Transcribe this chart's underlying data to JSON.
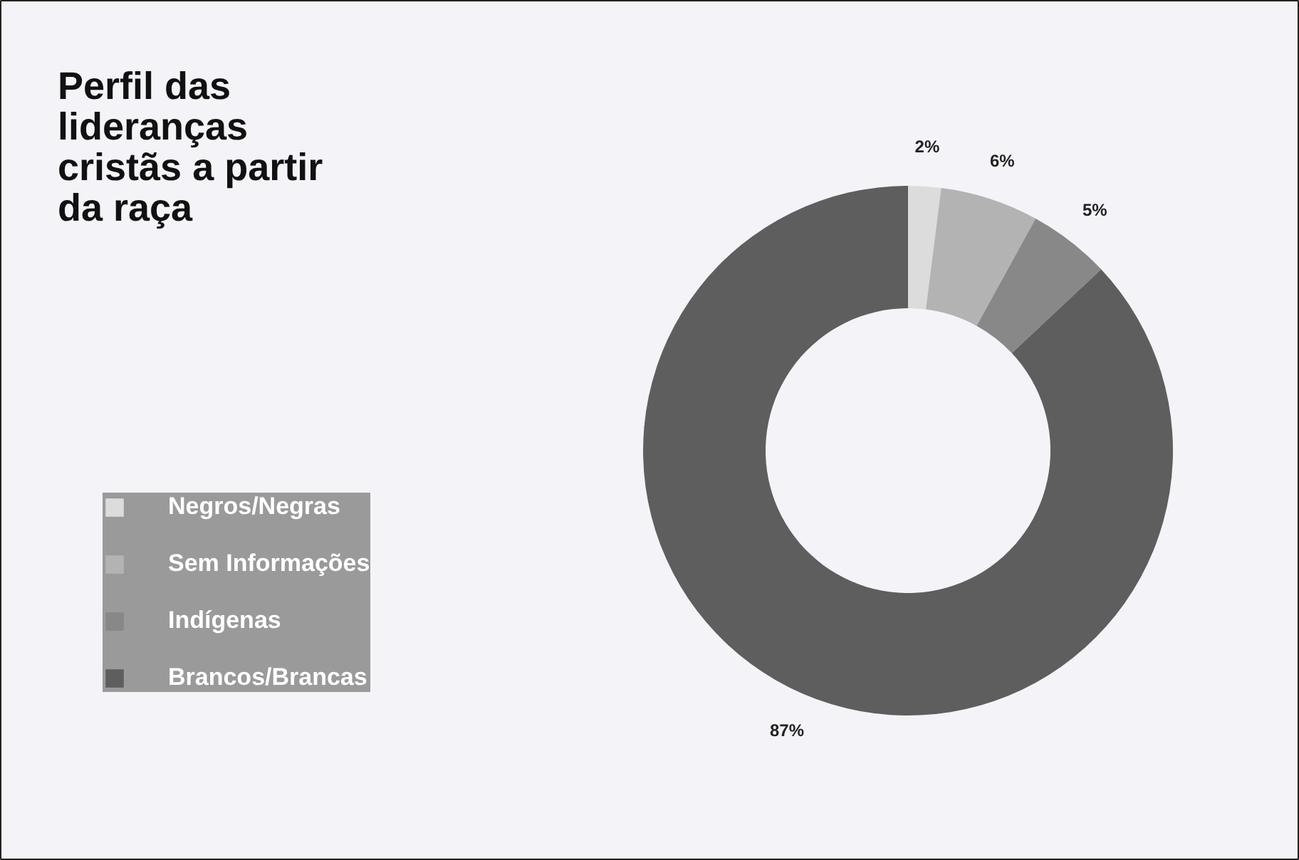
{
  "chart_data": {
    "type": "donut",
    "title": "Perfil das lideranças cristãs a partir da raça",
    "categories": [
      "Negros/Negras",
      "Sem Informações",
      "Indígenas",
      "Brancos/Brancas"
    ],
    "values": [
      2,
      6,
      5,
      87
    ],
    "value_labels": [
      "2%",
      "6%",
      "5%",
      "87%"
    ],
    "colors": [
      "#dcdcdc",
      "#b3b3b3",
      "#888888",
      "#5e5e5e"
    ],
    "legend": "left"
  }
}
